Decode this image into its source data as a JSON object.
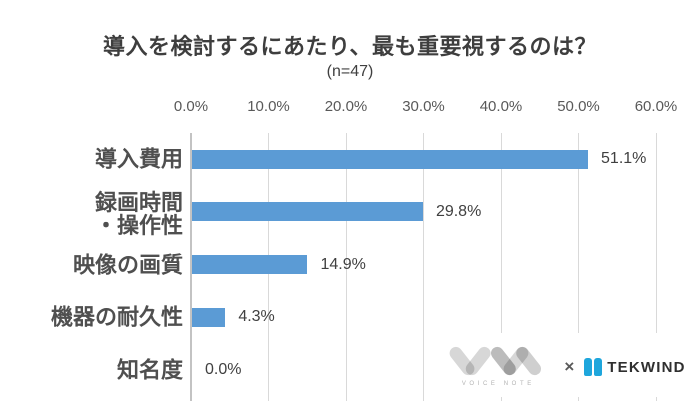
{
  "chart_data": {
    "type": "bar",
    "orientation": "horizontal",
    "title": "導入を検討するにあたり、最も重要視するのは？",
    "subtitle": "(n=47)",
    "categories": [
      "導入費用",
      "録画時間\n・操作性",
      "映像の画質",
      "機器の耐久性",
      "知名度"
    ],
    "values": [
      51.1,
      29.8,
      14.9,
      4.3,
      0.0
    ],
    "data_labels": [
      "51.1%",
      "29.8%",
      "14.9%",
      "4.3%",
      "0.0%"
    ],
    "x_ticks": [
      "0.0%",
      "10.0%",
      "20.0%",
      "30.0%",
      "40.0%",
      "50.0%",
      "60.0%"
    ],
    "xlim": [
      0,
      60
    ],
    "bar_color": "#5B9BD5",
    "gridline_color": "#D9D9D9",
    "grid": true,
    "legend": false,
    "xlabel": "",
    "ylabel": ""
  },
  "footer": {
    "voice_note_label": "VOICE NOTE",
    "separator": "×",
    "tekwind_label": "TEKWIND"
  }
}
